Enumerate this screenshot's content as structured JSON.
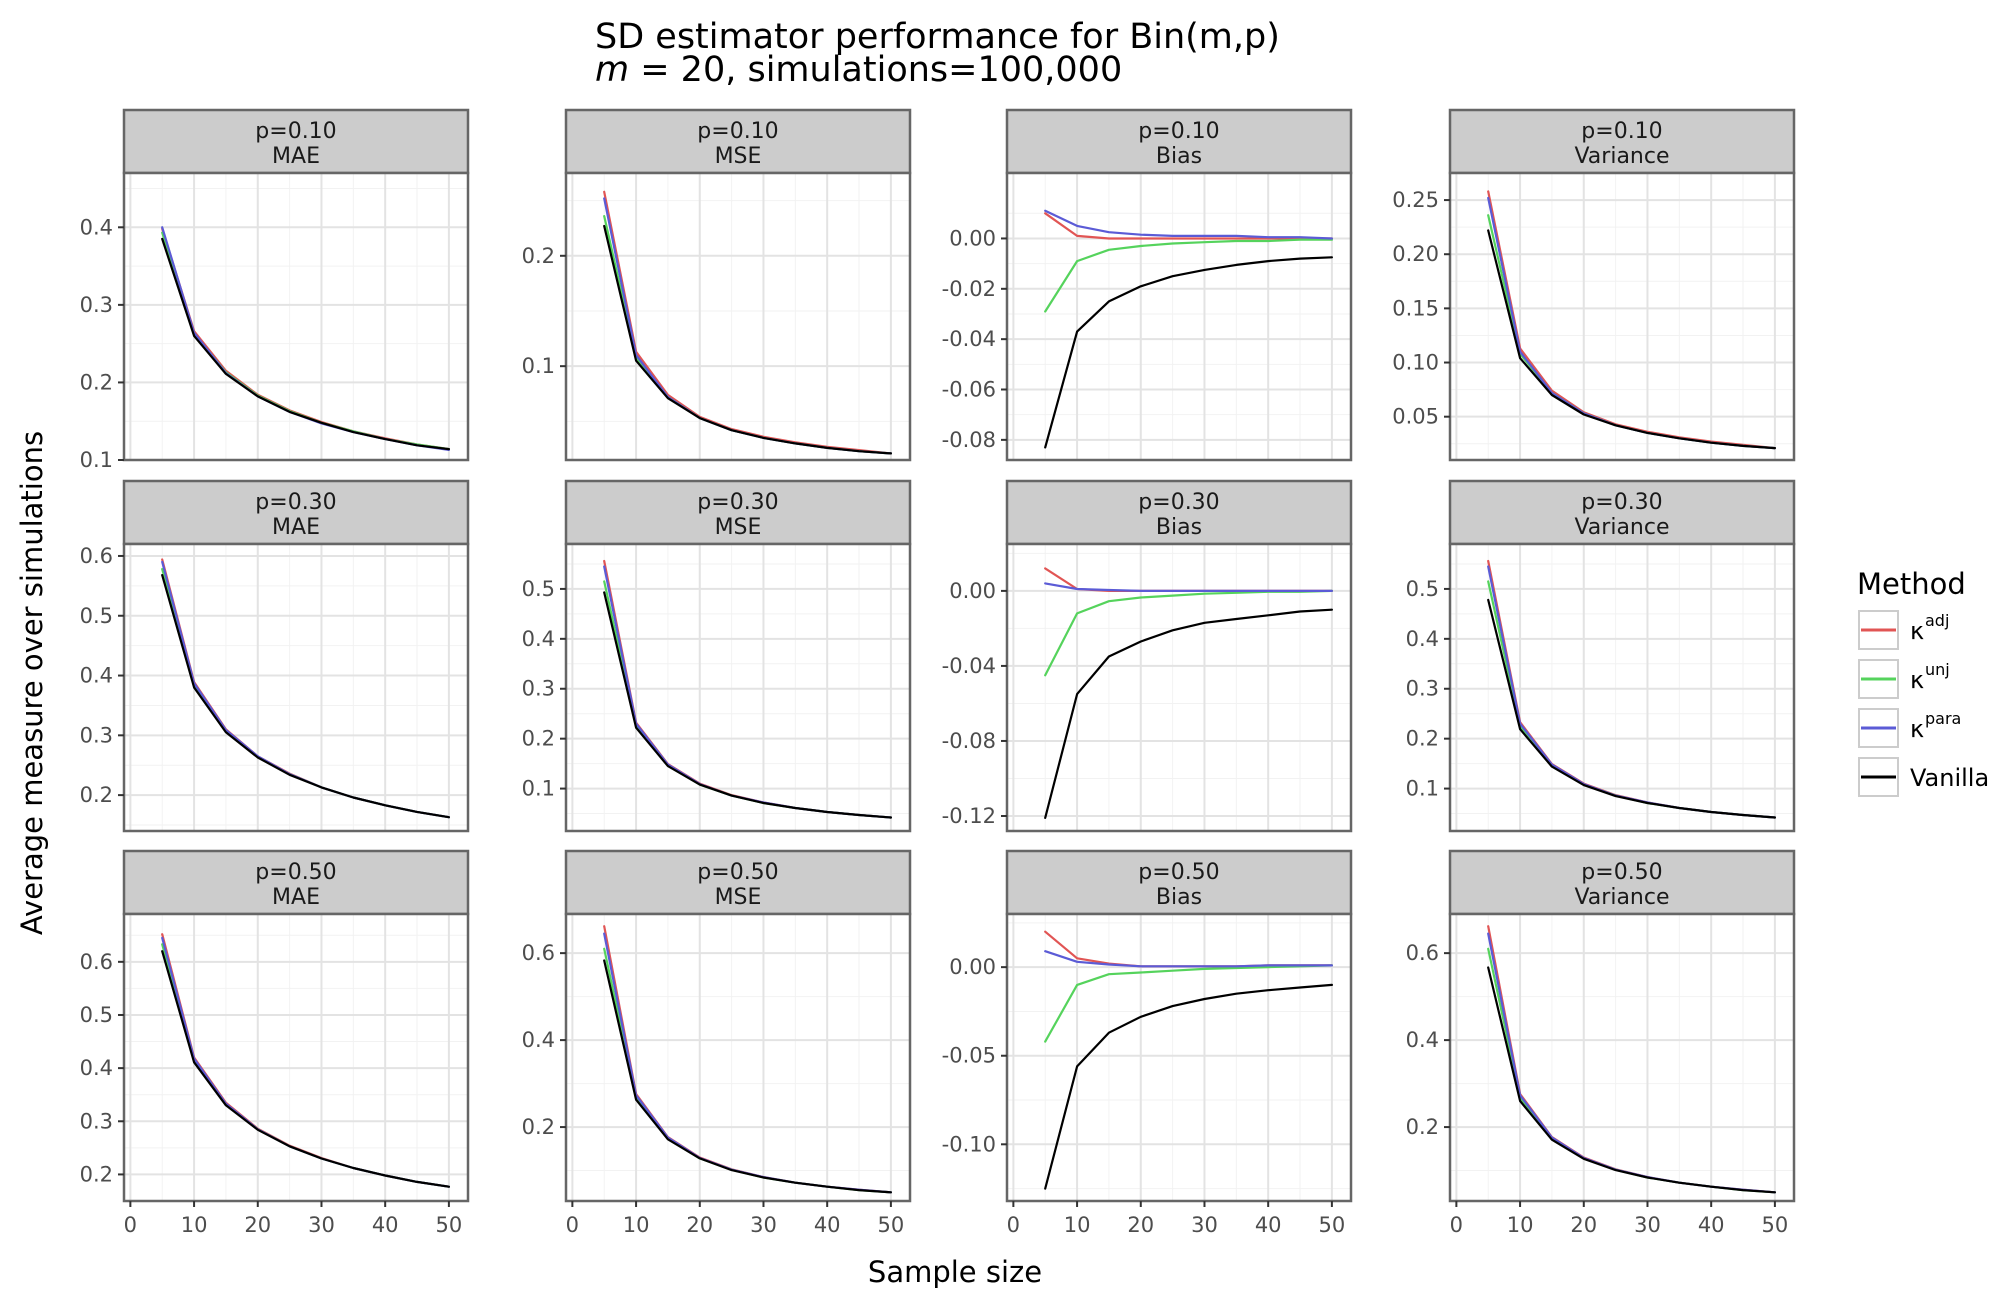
{
  "title": {
    "line1": "SD estimator performance for Bin(m,p)",
    "line2_prefix": "m",
    "line2_rest": " = 20, simulations=100,000"
  },
  "xlabel": "Sample size",
  "ylabel": "Average measure over simulations",
  "legend": {
    "title": "Method",
    "placement": "right",
    "items": [
      {
        "key": "adj",
        "base": "κ",
        "sup": "adj",
        "color": "#e15554"
      },
      {
        "key": "unj",
        "base": "κ",
        "sup": "unj",
        "color": "#55d35c"
      },
      {
        "key": "para",
        "base": "κ",
        "sup": "para",
        "color": "#5b5bd6"
      },
      {
        "key": "vanilla",
        "base": "Vanilla",
        "sup": "",
        "color": "#000000"
      }
    ]
  },
  "chart_data": {
    "type": "line",
    "grid": true,
    "x": [
      5,
      10,
      15,
      20,
      25,
      30,
      35,
      40,
      45,
      50
    ],
    "xlim": [
      -1,
      53
    ],
    "xticks": [
      0,
      10,
      20,
      30,
      40,
      50
    ],
    "xtick_labels": [
      "0",
      "10",
      "20",
      "30",
      "40",
      "50"
    ],
    "panels": [
      {
        "p": "p=0.10",
        "measure": "MAE",
        "ylim": [
          0.1,
          0.47
        ],
        "yticks": [
          0.1,
          0.2,
          0.3,
          0.4
        ],
        "ytick_labels": [
          "0.1",
          "0.2",
          "0.3",
          "0.4"
        ],
        "series": [
          {
            "key": "adj",
            "values": [
              0.398,
              0.266,
              0.215,
              0.184,
              0.164,
              0.149,
              0.137,
              0.128,
              0.12,
              0.114
            ]
          },
          {
            "key": "unj",
            "values": [
              0.393,
              0.263,
              0.213,
              0.183,
              0.163,
              0.148,
              0.137,
              0.127,
              0.12,
              0.114
            ]
          },
          {
            "key": "para",
            "values": [
              0.4,
              0.264,
              0.212,
              0.182,
              0.162,
              0.147,
              0.136,
              0.127,
              0.119,
              0.113
            ]
          },
          {
            "key": "vanilla",
            "values": [
              0.385,
              0.26,
              0.211,
              0.182,
              0.162,
              0.148,
              0.136,
              0.127,
              0.119,
              0.114
            ]
          }
        ]
      },
      {
        "p": "p=0.10",
        "measure": "MSE",
        "ylim": [
          0.015,
          0.275
        ],
        "yticks": [
          0.1,
          0.2
        ],
        "ytick_labels": [
          "0.1",
          "0.2"
        ],
        "series": [
          {
            "key": "adj",
            "values": [
              0.258,
              0.113,
              0.074,
              0.054,
              0.043,
              0.036,
              0.031,
              0.027,
              0.024,
              0.021
            ]
          },
          {
            "key": "unj",
            "values": [
              0.236,
              0.108,
              0.072,
              0.053,
              0.042,
              0.035,
              0.03,
              0.026,
              0.023,
              0.021
            ]
          },
          {
            "key": "para",
            "values": [
              0.252,
              0.11,
              0.072,
              0.053,
              0.042,
              0.035,
              0.03,
              0.026,
              0.023,
              0.021
            ]
          },
          {
            "key": "vanilla",
            "values": [
              0.227,
              0.105,
              0.071,
              0.053,
              0.042,
              0.035,
              0.03,
              0.026,
              0.023,
              0.021
            ]
          }
        ]
      },
      {
        "p": "p=0.10",
        "measure": "Bias",
        "ylim": [
          -0.088,
          0.026
        ],
        "yticks": [
          0.0,
          -0.02,
          -0.04,
          -0.06,
          -0.08
        ],
        "ytick_labels": [
          "0.00",
          "-0.02",
          "-0.04",
          "-0.06",
          "-0.08"
        ],
        "series": [
          {
            "key": "adj",
            "values": [
              0.01,
              0.001,
              0.0,
              0.0,
              0.0,
              0.0,
              0.0,
              0.0,
              0.0,
              0.0
            ]
          },
          {
            "key": "unj",
            "values": [
              -0.029,
              -0.009,
              -0.0045,
              -0.003,
              -0.002,
              -0.0015,
              -0.001,
              -0.001,
              -0.0005,
              -0.0005
            ]
          },
          {
            "key": "para",
            "values": [
              0.011,
              0.005,
              0.0025,
              0.0015,
              0.001,
              0.001,
              0.001,
              0.0005,
              0.0005,
              0.0
            ]
          },
          {
            "key": "vanilla",
            "values": [
              -0.083,
              -0.037,
              -0.025,
              -0.019,
              -0.015,
              -0.0125,
              -0.0105,
              -0.009,
              -0.008,
              -0.0075
            ]
          }
        ]
      },
      {
        "p": "p=0.10",
        "measure": "Variance",
        "ylim": [
          0.01,
          0.275
        ],
        "yticks": [
          0.05,
          0.1,
          0.15,
          0.2,
          0.25
        ],
        "ytick_labels": [
          "0.05",
          "0.10",
          "0.15",
          "0.20",
          "0.25"
        ],
        "series": [
          {
            "key": "adj",
            "values": [
              0.258,
              0.113,
              0.074,
              0.054,
              0.043,
              0.036,
              0.031,
              0.027,
              0.024,
              0.021
            ]
          },
          {
            "key": "unj",
            "values": [
              0.236,
              0.108,
              0.072,
              0.053,
              0.042,
              0.035,
              0.03,
              0.026,
              0.023,
              0.021
            ]
          },
          {
            "key": "para",
            "values": [
              0.252,
              0.11,
              0.072,
              0.053,
              0.042,
              0.035,
              0.03,
              0.026,
              0.023,
              0.021
            ]
          },
          {
            "key": "vanilla",
            "values": [
              0.222,
              0.104,
              0.07,
              0.052,
              0.042,
              0.035,
              0.03,
              0.026,
              0.023,
              0.021
            ]
          }
        ]
      },
      {
        "p": "p=0.30",
        "measure": "MAE",
        "ylim": [
          0.14,
          0.62
        ],
        "yticks": [
          0.2,
          0.3,
          0.4,
          0.5,
          0.6
        ],
        "ytick_labels": [
          "0.2",
          "0.3",
          "0.4",
          "0.5",
          "0.6"
        ],
        "series": [
          {
            "key": "adj",
            "values": [
              0.594,
              0.389,
              0.31,
              0.265,
              0.236,
              0.213,
              0.196,
              0.183,
              0.172,
              0.163
            ]
          },
          {
            "key": "unj",
            "values": [
              0.578,
              0.384,
              0.307,
              0.264,
              0.235,
              0.213,
              0.196,
              0.183,
              0.172,
              0.163
            ]
          },
          {
            "key": "para",
            "values": [
              0.59,
              0.387,
              0.309,
              0.265,
              0.235,
              0.213,
              0.196,
              0.183,
              0.172,
              0.163
            ]
          },
          {
            "key": "vanilla",
            "values": [
              0.568,
              0.38,
              0.305,
              0.263,
              0.234,
              0.213,
              0.196,
              0.183,
              0.172,
              0.163
            ]
          }
        ]
      },
      {
        "p": "p=0.30",
        "measure": "MSE",
        "ylim": [
          0.015,
          0.59
        ],
        "yticks": [
          0.1,
          0.2,
          0.3,
          0.4,
          0.5
        ],
        "ytick_labels": [
          "0.1",
          "0.2",
          "0.3",
          "0.4",
          "0.5"
        ],
        "series": [
          {
            "key": "adj",
            "values": [
              0.556,
              0.232,
              0.149,
              0.11,
              0.087,
              0.072,
              0.061,
              0.053,
              0.047,
              0.042
            ]
          },
          {
            "key": "unj",
            "values": [
              0.515,
              0.225,
              0.146,
              0.108,
              0.086,
              0.071,
              0.061,
              0.053,
              0.047,
              0.042
            ]
          },
          {
            "key": "para",
            "values": [
              0.545,
              0.23,
              0.148,
              0.109,
              0.086,
              0.072,
              0.061,
              0.053,
              0.047,
              0.042
            ]
          },
          {
            "key": "vanilla",
            "values": [
              0.493,
              0.222,
              0.145,
              0.108,
              0.086,
              0.071,
              0.061,
              0.053,
              0.047,
              0.042
            ]
          }
        ]
      },
      {
        "p": "p=0.30",
        "measure": "Bias",
        "ylim": [
          -0.128,
          0.025
        ],
        "yticks": [
          0.0,
          -0.04,
          -0.08,
          -0.12
        ],
        "ytick_labels": [
          "0.00",
          "-0.04",
          "-0.08",
          "-0.12"
        ],
        "series": [
          {
            "key": "adj",
            "values": [
              0.012,
              0.001,
              0.0,
              0.0,
              0.0,
              0.0,
              0.0,
              0.0,
              0.0,
              0.0
            ]
          },
          {
            "key": "unj",
            "values": [
              -0.045,
              -0.012,
              -0.0055,
              -0.0035,
              -0.0025,
              -0.0015,
              -0.001,
              -0.0005,
              -0.0005,
              0.0
            ]
          },
          {
            "key": "para",
            "values": [
              0.004,
              0.001,
              0.0005,
              0.0,
              0.0,
              0.0,
              0.0,
              0.0,
              0.0,
              0.0
            ]
          },
          {
            "key": "vanilla",
            "values": [
              -0.121,
              -0.055,
              -0.035,
              -0.027,
              -0.021,
              -0.017,
              -0.015,
              -0.013,
              -0.011,
              -0.01
            ]
          }
        ]
      },
      {
        "p": "p=0.30",
        "measure": "Variance",
        "ylim": [
          0.015,
          0.59
        ],
        "yticks": [
          0.1,
          0.2,
          0.3,
          0.4,
          0.5
        ],
        "ytick_labels": [
          "0.1",
          "0.2",
          "0.3",
          "0.4",
          "0.5"
        ],
        "series": [
          {
            "key": "adj",
            "values": [
              0.556,
              0.233,
              0.149,
              0.11,
              0.087,
              0.072,
              0.061,
              0.053,
              0.047,
              0.042
            ]
          },
          {
            "key": "unj",
            "values": [
              0.515,
              0.225,
              0.146,
              0.108,
              0.086,
              0.071,
              0.061,
              0.053,
              0.047,
              0.042
            ]
          },
          {
            "key": "para",
            "values": [
              0.545,
              0.23,
              0.148,
              0.109,
              0.086,
              0.072,
              0.061,
              0.053,
              0.047,
              0.042
            ]
          },
          {
            "key": "vanilla",
            "values": [
              0.478,
              0.219,
              0.144,
              0.107,
              0.085,
              0.071,
              0.061,
              0.053,
              0.047,
              0.042
            ]
          }
        ]
      },
      {
        "p": "p=0.50",
        "measure": "MAE",
        "ylim": [
          0.15,
          0.69
        ],
        "yticks": [
          0.2,
          0.3,
          0.4,
          0.5,
          0.6
        ],
        "ytick_labels": [
          "0.2",
          "0.3",
          "0.4",
          "0.5",
          "0.6"
        ],
        "series": [
          {
            "key": "adj",
            "values": [
              0.652,
              0.42,
              0.335,
              0.286,
              0.254,
              0.231,
              0.212,
              0.198,
              0.186,
              0.177
            ]
          },
          {
            "key": "unj",
            "values": [
              0.633,
              0.415,
              0.332,
              0.285,
              0.253,
              0.23,
              0.212,
              0.198,
              0.186,
              0.177
            ]
          },
          {
            "key": "para",
            "values": [
              0.645,
              0.418,
              0.333,
              0.285,
              0.253,
              0.23,
              0.212,
              0.198,
              0.186,
              0.177
            ]
          },
          {
            "key": "vanilla",
            "values": [
              0.62,
              0.411,
              0.33,
              0.284,
              0.253,
              0.23,
              0.212,
              0.198,
              0.186,
              0.177
            ]
          }
        ]
      },
      {
        "p": "p=0.50",
        "measure": "MSE",
        "ylim": [
          0.03,
          0.69
        ],
        "yticks": [
          0.2,
          0.4,
          0.6
        ],
        "ytick_labels": [
          "0.2",
          "0.4",
          "0.6"
        ],
        "series": [
          {
            "key": "adj",
            "values": [
              0.662,
              0.276,
              0.177,
              0.13,
              0.103,
              0.085,
              0.072,
              0.063,
              0.056,
              0.05
            ]
          },
          {
            "key": "unj",
            "values": [
              0.61,
              0.268,
              0.174,
              0.128,
              0.102,
              0.084,
              0.072,
              0.063,
              0.055,
              0.05
            ]
          },
          {
            "key": "para",
            "values": [
              0.645,
              0.273,
              0.176,
              0.129,
              0.102,
              0.085,
              0.072,
              0.063,
              0.056,
              0.05
            ]
          },
          {
            "key": "vanilla",
            "values": [
              0.583,
              0.263,
              0.172,
              0.128,
              0.101,
              0.084,
              0.072,
              0.063,
              0.055,
              0.05
            ]
          }
        ]
      },
      {
        "p": "p=0.50",
        "measure": "Bias",
        "ylim": [
          -0.132,
          0.03
        ],
        "yticks": [
          0.0,
          -0.05,
          -0.1
        ],
        "ytick_labels": [
          "0.00",
          "-0.05",
          "-0.10"
        ],
        "series": [
          {
            "key": "adj",
            "values": [
              0.02,
              0.005,
              0.002,
              0.0005,
              0.0005,
              0.0005,
              0.0005,
              0.001,
              0.001,
              0.001
            ]
          },
          {
            "key": "unj",
            "values": [
              -0.042,
              -0.01,
              -0.004,
              -0.003,
              -0.002,
              -0.001,
              -0.0005,
              0.0,
              0.0005,
              0.001
            ]
          },
          {
            "key": "para",
            "values": [
              0.009,
              0.003,
              0.0015,
              0.0005,
              0.0005,
              0.0005,
              0.0005,
              0.001,
              0.001,
              0.001
            ]
          },
          {
            "key": "vanilla",
            "values": [
              -0.125,
              -0.056,
              -0.037,
              -0.028,
              -0.022,
              -0.018,
              -0.015,
              -0.013,
              -0.0115,
              -0.01
            ]
          }
        ]
      },
      {
        "p": "p=0.50",
        "measure": "Variance",
        "ylim": [
          0.03,
          0.69
        ],
        "yticks": [
          0.2,
          0.4,
          0.6
        ],
        "ytick_labels": [
          "0.2",
          "0.4",
          "0.6"
        ],
        "series": [
          {
            "key": "adj",
            "values": [
              0.662,
              0.276,
              0.177,
              0.13,
              0.103,
              0.085,
              0.072,
              0.063,
              0.056,
              0.05
            ]
          },
          {
            "key": "unj",
            "values": [
              0.61,
              0.268,
              0.174,
              0.128,
              0.102,
              0.084,
              0.072,
              0.063,
              0.055,
              0.05
            ]
          },
          {
            "key": "para",
            "values": [
              0.645,
              0.273,
              0.176,
              0.129,
              0.102,
              0.085,
              0.072,
              0.063,
              0.056,
              0.05
            ]
          },
          {
            "key": "vanilla",
            "values": [
              0.567,
              0.26,
              0.171,
              0.127,
              0.101,
              0.084,
              0.072,
              0.063,
              0.055,
              0.05
            ]
          }
        ]
      }
    ]
  }
}
